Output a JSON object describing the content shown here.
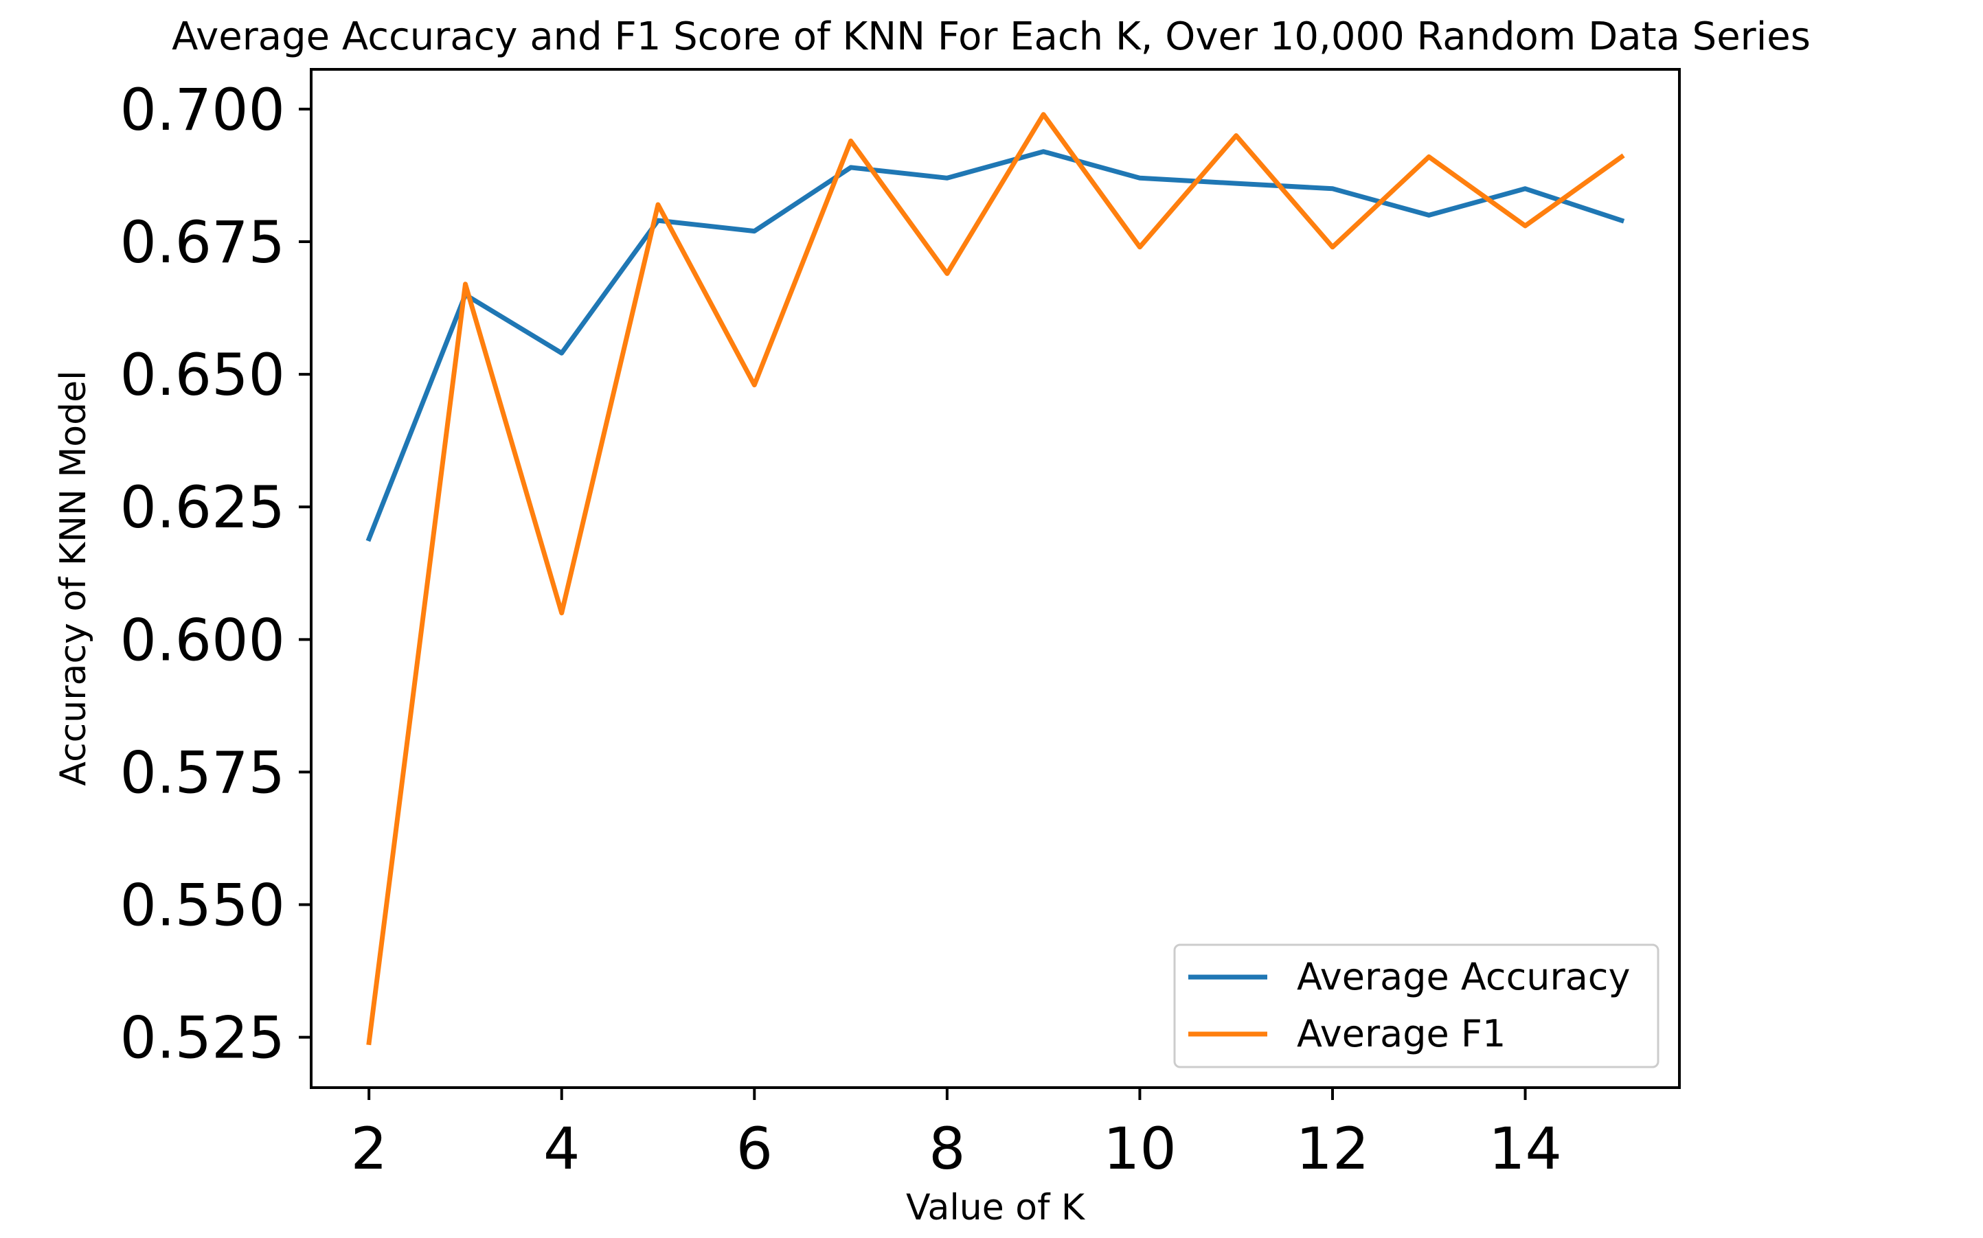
{
  "chart_data": {
    "type": "line",
    "title": "Average Accuracy and F1 Score of KNN For Each K, Over 10,000 Random Data Series",
    "xlabel": "Value of K",
    "ylabel": "Accuracy of KNN Model",
    "x": [
      2,
      3,
      4,
      5,
      6,
      7,
      8,
      9,
      10,
      11,
      12,
      13,
      14,
      15
    ],
    "xlim": [
      1.4,
      15.6
    ],
    "ylim": [
      0.5155,
      0.7075
    ],
    "xticks": [
      2,
      4,
      6,
      8,
      10,
      12,
      14
    ],
    "xtick_labels": [
      "2",
      "4",
      "6",
      "8",
      "10",
      "12",
      "14"
    ],
    "yticks": [
      0.525,
      0.55,
      0.575,
      0.6,
      0.625,
      0.65,
      0.675,
      0.7
    ],
    "ytick_labels": [
      "0.525",
      "0.550",
      "0.575",
      "0.600",
      "0.625",
      "0.650",
      "0.675",
      "0.700"
    ],
    "grid": false,
    "legend_position": "bottom-right",
    "series": [
      {
        "name": "Average Accuracy",
        "color": "#1f77b4",
        "values": [
          0.619,
          0.665,
          0.654,
          0.679,
          0.677,
          0.689,
          0.687,
          0.692,
          0.687,
          0.686,
          0.685,
          0.68,
          0.685,
          0.679
        ]
      },
      {
        "name": "Average F1",
        "color": "#ff7f0e",
        "values": [
          0.524,
          0.667,
          0.605,
          0.682,
          0.648,
          0.694,
          0.669,
          0.699,
          0.674,
          0.695,
          0.674,
          0.691,
          0.678,
          0.691
        ]
      }
    ]
  }
}
